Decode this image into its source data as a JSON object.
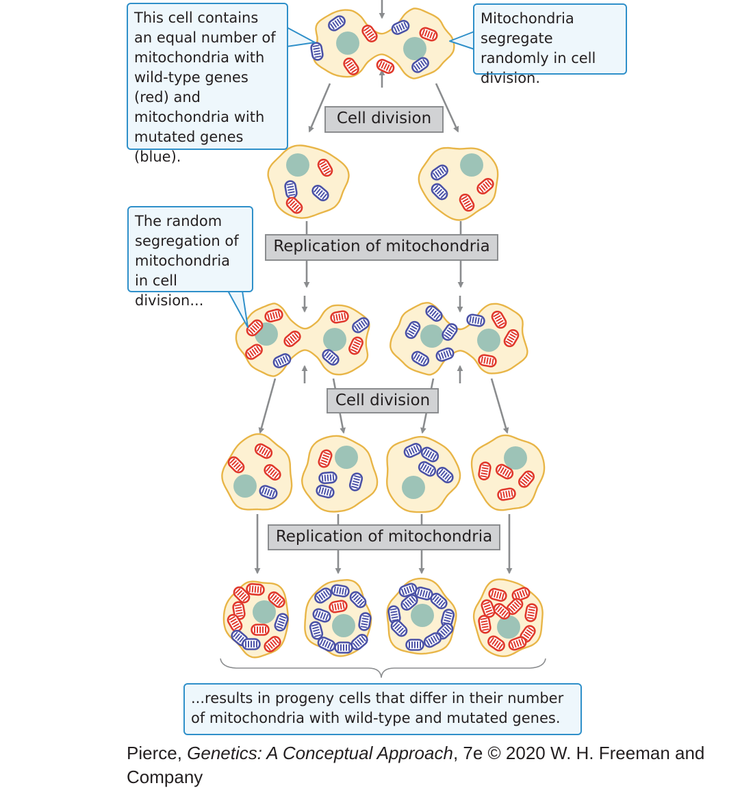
{
  "callouts": {
    "equal_number": "This cell contains an equal number of mitochondria with wild-type genes (red) and mitochondria with mutated genes (blue).",
    "segregate": "Mitochondria segregate randomly in cell division.",
    "random_segregation": "The random segregation of mitochondria in cell division...",
    "results": "...results in progeny cells that differ in their number of mitochondria with wild-type and mutated genes."
  },
  "step_labels": {
    "cell_division_1": "Cell division",
    "replication_1": "Replication of mitochondria",
    "cell_division_2": "Cell division",
    "replication_2": "Replication of mitochondria"
  },
  "caption": {
    "prefix": "Pierce, ",
    "title": "Genetics: A Conceptual Approach",
    "suffix": ", 7e © 2020 W. H. Freeman and Company"
  },
  "colors": {
    "cell_fill": "#fdf1d2",
    "cell_outline": "#e8b547",
    "nucleus": "#9dc3b7",
    "wild_type_mitochondria": "#e0382b",
    "mutated_mitochondria": "#4a51a6",
    "arrow": "#8a8c8e",
    "callout_border": "#2e8fc9",
    "callout_fill": "#eef7fc",
    "label_fill": "#d1d2d4"
  },
  "legend": {
    "wild_type": "wild-type genes (red)",
    "mutated": "mutated genes (blue)"
  }
}
